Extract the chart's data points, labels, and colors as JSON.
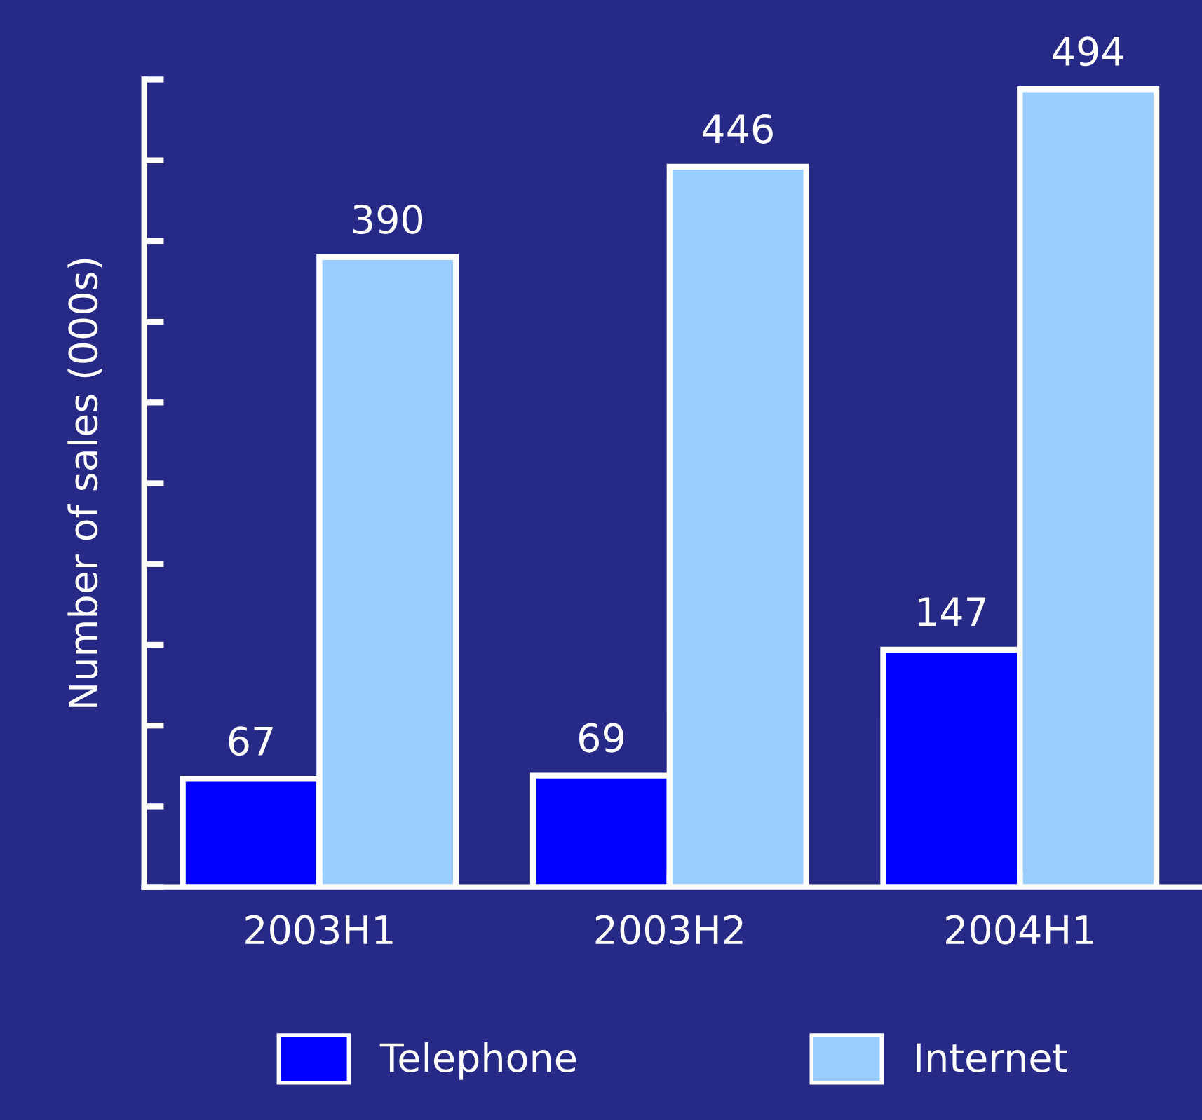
{
  "chart_data": {
    "type": "bar",
    "ylabel": "Number of sales (000s)",
    "categories": [
      "2003H1",
      "2003H2",
      "2004H1"
    ],
    "series": [
      {
        "name": "Telephone",
        "color": "#0000ff",
        "values": [
          67,
          69,
          147
        ]
      },
      {
        "name": "Internet",
        "color": "#99ccff",
        "values": [
          390,
          446,
          494
        ]
      }
    ],
    "ylim": [
      0,
      500
    ],
    "yticks": [
      {
        "value": 0,
        "label": null
      },
      {
        "value": 50,
        "label": null
      },
      {
        "value": 100,
        "label": null
      },
      {
        "value": 150,
        "label": null
      },
      {
        "value": 200,
        "label": null
      },
      {
        "value": 250,
        "label": null
      },
      {
        "value": 300,
        "label": null
      },
      {
        "value": 350,
        "label": null
      },
      {
        "value": 400,
        "label": null
      },
      {
        "value": 450,
        "label": null
      },
      {
        "value": 500,
        "label": null
      }
    ],
    "tick_labels": "x",
    "data_labels": true,
    "legend": "bottom",
    "grid": false
  }
}
